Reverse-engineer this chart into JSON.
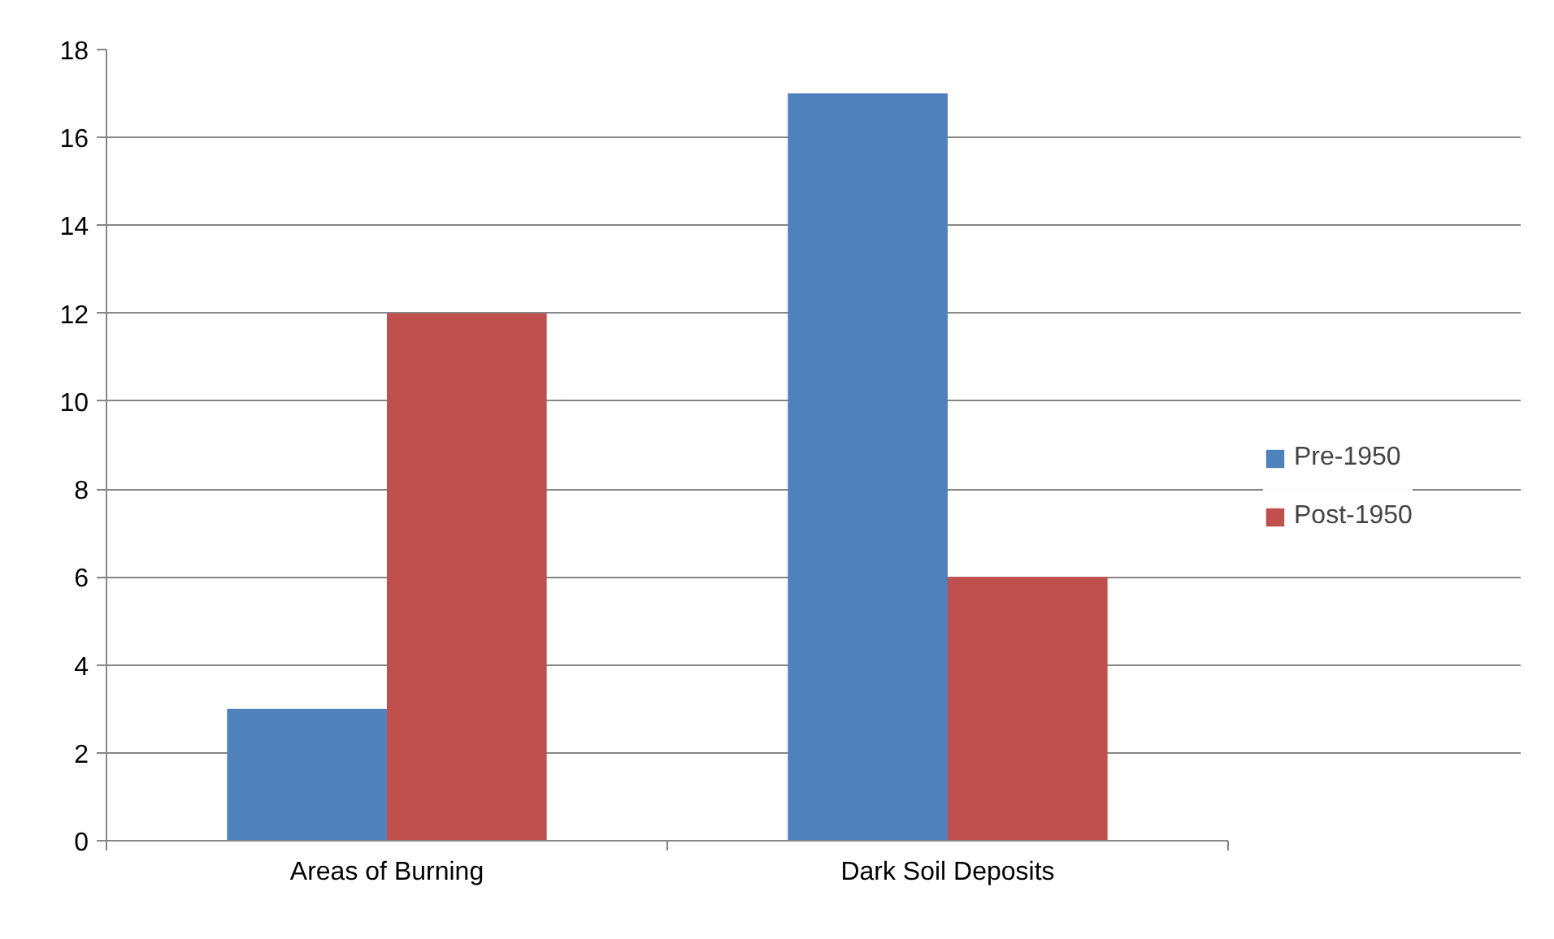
{
  "chart_data": {
    "type": "bar",
    "categories": [
      "Areas of Burning",
      "Dark Soil Deposits"
    ],
    "series": [
      {
        "name": "Pre-1950",
        "color": "#4f81bd",
        "values": [
          3,
          17
        ]
      },
      {
        "name": "Post-1950",
        "color": "#c0504d",
        "values": [
          12,
          6
        ]
      }
    ],
    "ylim": [
      0,
      18
    ],
    "yticks": [
      0,
      2,
      4,
      6,
      8,
      10,
      12,
      14,
      16,
      18
    ],
    "grid": "y",
    "legend": "right"
  }
}
